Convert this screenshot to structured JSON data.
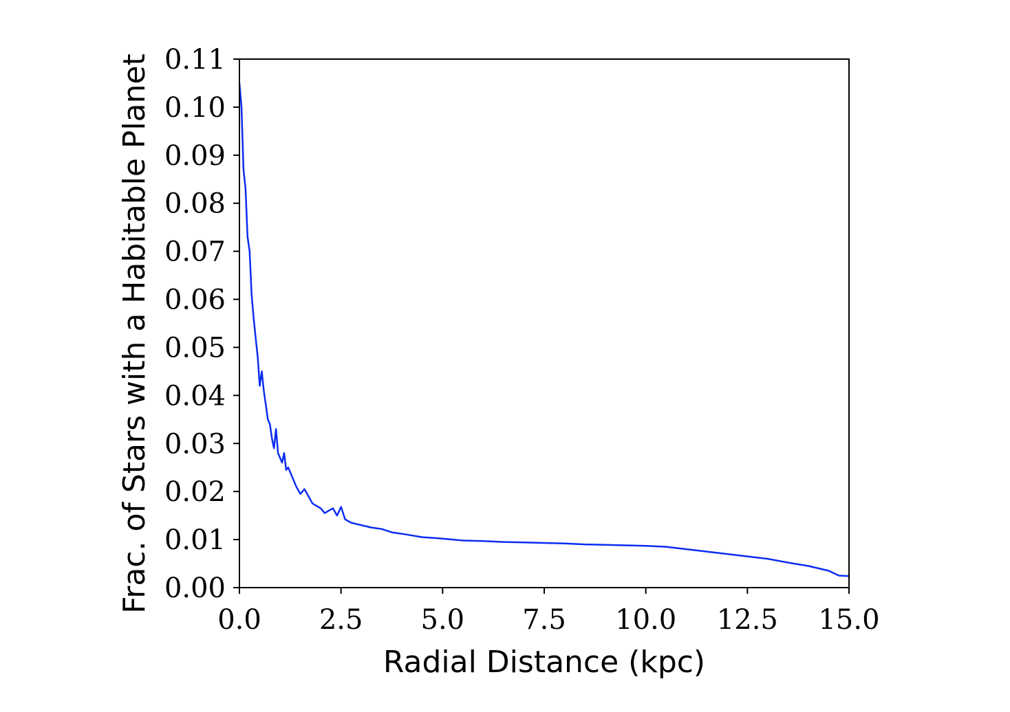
{
  "chart_data": {
    "type": "line",
    "title": "",
    "xlabel": "Radial Distance (kpc)",
    "ylabel": "Frac.  of Stars with a Habitable Planet",
    "xlim": [
      0.0,
      15.0
    ],
    "ylim": [
      0.0,
      0.11
    ],
    "x_ticks": [
      0.0,
      2.5,
      5.0,
      7.5,
      10.0,
      12.5,
      15.0
    ],
    "x_tick_labels": [
      "0.0",
      "2.5",
      "5.0",
      "7.5",
      "10.0",
      "12.5",
      "15.0"
    ],
    "y_ticks": [
      0.0,
      0.01,
      0.02,
      0.03,
      0.04,
      0.05,
      0.06,
      0.07,
      0.08,
      0.09,
      0.1,
      0.11
    ],
    "y_tick_labels": [
      "0.00",
      "0.01",
      "0.02",
      "0.03",
      "0.04",
      "0.05",
      "0.06",
      "0.07",
      "0.08",
      "0.09",
      "0.10",
      "0.11"
    ],
    "grid": false,
    "legend": "none",
    "line_color": "#0b2cf2",
    "series": [
      {
        "x": [
          0.0,
          0.05,
          0.1,
          0.15,
          0.2,
          0.25,
          0.3,
          0.35,
          0.4,
          0.45,
          0.5,
          0.55,
          0.6,
          0.65,
          0.7,
          0.75,
          0.8,
          0.85,
          0.9,
          0.95,
          1.0,
          1.05,
          1.1,
          1.15,
          1.2,
          1.3,
          1.4,
          1.5,
          1.6,
          1.7,
          1.8,
          1.9,
          2.0,
          2.1,
          2.2,
          2.3,
          2.4,
          2.5,
          2.6,
          2.75,
          3.0,
          3.25,
          3.5,
          3.75,
          4.0,
          4.5,
          5.0,
          5.5,
          6.0,
          6.5,
          7.0,
          7.5,
          8.0,
          8.5,
          9.0,
          9.5,
          10.0,
          10.5,
          11.0,
          11.5,
          12.0,
          12.5,
          13.0,
          13.5,
          14.0,
          14.5,
          14.75,
          15.0
        ],
        "y": [
          0.105,
          0.1,
          0.087,
          0.083,
          0.073,
          0.07,
          0.061,
          0.056,
          0.052,
          0.048,
          0.042,
          0.045,
          0.041,
          0.038,
          0.035,
          0.034,
          0.031,
          0.029,
          0.033,
          0.028,
          0.027,
          0.026,
          0.028,
          0.0245,
          0.025,
          0.023,
          0.021,
          0.0195,
          0.0205,
          0.019,
          0.0175,
          0.017,
          0.0165,
          0.0155,
          0.016,
          0.0165,
          0.015,
          0.0168,
          0.0142,
          0.0135,
          0.013,
          0.0125,
          0.0122,
          0.0115,
          0.0112,
          0.0105,
          0.0102,
          0.0098,
          0.0097,
          0.0095,
          0.0094,
          0.0093,
          0.0092,
          0.009,
          0.0089,
          0.0088,
          0.0087,
          0.0085,
          0.008,
          0.0075,
          0.007,
          0.0065,
          0.006,
          0.0052,
          0.0045,
          0.0035,
          0.0025,
          0.0024
        ]
      }
    ]
  }
}
